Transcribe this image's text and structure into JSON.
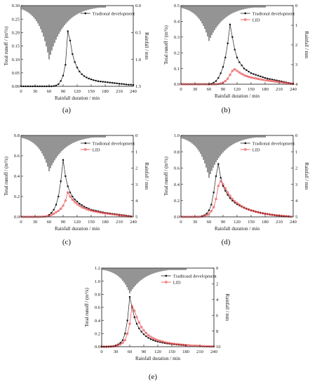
{
  "figure": {
    "caption_labels": [
      "(a)",
      "(b)",
      "(c)",
      "(d)",
      "(e)"
    ]
  },
  "chart_data": [
    {
      "panel": "(a)",
      "type": "line",
      "xlabel": "Rainfall duration / min",
      "ylabel": "Total runoff / (m³/s)",
      "y2label": "Rainfall / mm",
      "xlim": [
        0,
        240
      ],
      "xticks": [
        0,
        30,
        60,
        90,
        120,
        150,
        180,
        210,
        240
      ],
      "ylim": [
        0,
        0.3
      ],
      "yticks": [
        0.0,
        0.05,
        0.1,
        0.15,
        0.2,
        0.25,
        0.3
      ],
      "ytick_format": "0.00",
      "y2lim": [
        0,
        1.5
      ],
      "y2ticks": [
        0.0,
        0.5,
        1.0,
        1.5
      ],
      "y2tick_format": "0.0",
      "rain_peak": 1.0,
      "rain_peak_time": 60,
      "series": [
        {
          "name": "Tradional development",
          "color": "#000000",
          "marker": "square",
          "x": [
            0,
            5,
            10,
            15,
            20,
            25,
            30,
            35,
            40,
            45,
            50,
            55,
            60,
            65,
            70,
            75,
            80,
            85,
            90,
            95,
            100,
            105,
            110,
            115,
            120,
            125,
            130,
            135,
            140,
            145,
            150,
            155,
            160,
            165,
            170,
            175,
            180,
            185,
            190,
            195,
            200,
            205,
            210,
            215,
            220,
            225,
            230,
            235,
            240
          ],
          "y": [
            0,
            0,
            0,
            0,
            0,
            0,
            0,
            0,
            0,
            0,
            0,
            0,
            0,
            0,
            0.001,
            0.003,
            0.008,
            0.02,
            0.04,
            0.08,
            0.205,
            0.17,
            0.12,
            0.09,
            0.07,
            0.055,
            0.045,
            0.038,
            0.033,
            0.029,
            0.026,
            0.023,
            0.021,
            0.019,
            0.018,
            0.017,
            0.016,
            0.015,
            0.014,
            0.013,
            0.012,
            0.011,
            0.01,
            0.009,
            0.008,
            0.007,
            0.006,
            0.006,
            0.005
          ]
        }
      ]
    },
    {
      "panel": "(b)",
      "type": "line",
      "xlabel": "Rainfall duration / min",
      "ylabel": "Total runoff / (m³/s)",
      "y2label": "Rainfall / mm",
      "xlim": [
        0,
        240
      ],
      "xticks": [
        0,
        30,
        60,
        90,
        120,
        150,
        180,
        210,
        240
      ],
      "ylim": [
        0,
        0.5
      ],
      "yticks": [
        0.0,
        0.1,
        0.2,
        0.3,
        0.4,
        0.5
      ],
      "ytick_format": "0.0",
      "y2lim": [
        0,
        4
      ],
      "y2ticks": [
        0,
        1,
        2,
        3,
        4
      ],
      "y2tick_format": "0",
      "rain_peak": 1.8,
      "rain_peak_time": 60,
      "series": [
        {
          "name": "Tradional development",
          "color": "#000000",
          "marker": "square",
          "x": [
            60,
            65,
            70,
            75,
            80,
            85,
            90,
            95,
            100,
            105,
            110,
            115,
            120,
            125,
            130,
            135,
            140,
            145,
            150,
            155,
            160,
            165,
            170,
            175,
            180,
            185,
            190,
            195,
            200,
            205,
            210,
            215,
            220,
            225,
            230,
            235,
            240
          ],
          "y": [
            0,
            0.003,
            0.01,
            0.02,
            0.04,
            0.07,
            0.11,
            0.17,
            0.26,
            0.38,
            0.3,
            0.22,
            0.17,
            0.14,
            0.12,
            0.1,
            0.09,
            0.08,
            0.07,
            0.065,
            0.06,
            0.055,
            0.05,
            0.045,
            0.04,
            0.036,
            0.033,
            0.03,
            0.027,
            0.024,
            0.021,
            0.018,
            0.015,
            0.012,
            0.009,
            0.006,
            0.003
          ]
        },
        {
          "name": "LID",
          "color": "#e8464a",
          "marker": "circle",
          "x": [
            0,
            5,
            10,
            15,
            20,
            25,
            30,
            35,
            40,
            45,
            50,
            55,
            60,
            65,
            70,
            75,
            80,
            85,
            90,
            95,
            100,
            105,
            110,
            115,
            120,
            125,
            130,
            135,
            140,
            145,
            150,
            155,
            160,
            165,
            170,
            175,
            180,
            185,
            190,
            195,
            200,
            205,
            210,
            215,
            220,
            225,
            230,
            235,
            240
          ],
          "y": [
            0,
            0,
            0,
            0,
            0,
            0,
            0,
            0,
            0,
            0,
            0,
            0,
            0,
            0,
            0,
            0,
            0.002,
            0.005,
            0.01,
            0.02,
            0.035,
            0.06,
            0.085,
            0.095,
            0.085,
            0.075,
            0.066,
            0.058,
            0.052,
            0.047,
            0.043,
            0.04,
            0.037,
            0.034,
            0.031,
            0.028,
            0.026,
            0.024,
            0.022,
            0.02,
            0.018,
            0.016,
            0.014,
            0.012,
            0.01,
            0.008,
            0.006,
            0.004,
            0.002
          ]
        }
      ]
    },
    {
      "panel": "(c)",
      "type": "line",
      "xlabel": "Rainfall duration / min",
      "ylabel": "Total runoff / (m³/s)",
      "y2label": "Rainfall / mm",
      "xlim": [
        0,
        240
      ],
      "xticks": [
        0,
        30,
        60,
        90,
        120,
        150,
        180,
        210,
        240
      ],
      "ylim": [
        0,
        0.8
      ],
      "yticks": [
        0.0,
        0.2,
        0.4,
        0.6,
        0.8
      ],
      "ytick_format": "0.0",
      "y2lim": [
        0,
        5
      ],
      "y2ticks": [
        0,
        1,
        2,
        3,
        4,
        5
      ],
      "y2tick_format": "0",
      "rain_peak": 2.2,
      "rain_peak_time": 60,
      "series": [
        {
          "name": "Tradional development",
          "color": "#000000",
          "marker": "square",
          "x": [
            60,
            65,
            70,
            75,
            80,
            85,
            90,
            95,
            100,
            105,
            110,
            115,
            120,
            125,
            130,
            135,
            140,
            145,
            150,
            155,
            160,
            165,
            170,
            175,
            180,
            185,
            190,
            195,
            200,
            205,
            210,
            215,
            220,
            225,
            230,
            235
          ],
          "y": [
            0.02,
            0.04,
            0.07,
            0.12,
            0.2,
            0.35,
            0.56,
            0.4,
            0.3,
            0.24,
            0.2,
            0.17,
            0.15,
            0.13,
            0.115,
            0.1,
            0.09,
            0.08,
            0.07,
            0.065,
            0.06,
            0.055,
            0.05,
            0.045,
            0.04,
            0.037,
            0.034,
            0.031,
            0.028,
            0.025,
            0.022,
            0.019,
            0.016,
            0.013,
            0.01,
            0.007
          ]
        },
        {
          "name": "LID",
          "color": "#e8464a",
          "marker": "circle",
          "x": [
            0,
            5,
            10,
            15,
            20,
            25,
            30,
            35,
            40,
            45,
            50,
            55,
            60,
            65,
            70,
            75,
            80,
            85,
            90,
            95,
            100,
            105,
            110,
            115,
            120,
            125,
            130,
            135,
            140,
            145,
            150,
            155,
            160,
            165,
            170,
            175,
            180,
            185,
            190,
            195,
            200,
            205,
            210,
            215,
            220,
            225,
            230,
            235
          ],
          "y": [
            0,
            0,
            0,
            0,
            0,
            0,
            0,
            0,
            0.001,
            0.002,
            0.004,
            0.007,
            0.012,
            0.02,
            0.03,
            0.045,
            0.06,
            0.08,
            0.11,
            0.16,
            0.24,
            0.2,
            0.17,
            0.145,
            0.125,
            0.11,
            0.095,
            0.085,
            0.075,
            0.068,
            0.062,
            0.056,
            0.051,
            0.046,
            0.042,
            0.038,
            0.035,
            0.032,
            0.029,
            0.026,
            0.023,
            0.02,
            0.017,
            0.014,
            0.011,
            0.008,
            0.006,
            0.004
          ]
        }
      ]
    },
    {
      "panel": "(d)",
      "type": "line",
      "xlabel": "Rainfall duration / min",
      "ylabel": "Total runoff / (m³/s)",
      "y2label": "Rainfall / mm",
      "xlim": [
        0,
        240
      ],
      "xticks": [
        0,
        30,
        60,
        90,
        120,
        150,
        180,
        210,
        240
      ],
      "ylim": [
        0,
        1.0
      ],
      "yticks": [
        0.0,
        0.2,
        0.4,
        0.6,
        0.8,
        1.0
      ],
      "ytick_format": "0.0",
      "y2lim": [
        0,
        5
      ],
      "y2ticks": [
        0,
        1,
        2,
        3,
        4,
        5
      ],
      "y2tick_format": "0",
      "rain_peak": 2.6,
      "rain_peak_time": 60,
      "series": [
        {
          "name": "Tradional development",
          "color": "#000000",
          "marker": "square",
          "x": [
            45,
            50,
            55,
            60,
            65,
            70,
            75,
            80,
            85,
            90,
            95,
            100,
            105,
            110,
            115,
            120,
            125,
            130,
            135,
            140,
            145,
            150,
            155,
            160,
            165,
            170,
            175,
            180,
            185,
            190,
            195,
            200,
            205,
            210,
            215,
            220,
            225,
            230
          ],
          "y": [
            0.01,
            0.02,
            0.04,
            0.08,
            0.15,
            0.3,
            0.5,
            0.65,
            0.48,
            0.38,
            0.32,
            0.27,
            0.23,
            0.2,
            0.175,
            0.155,
            0.14,
            0.125,
            0.11,
            0.1,
            0.09,
            0.08,
            0.072,
            0.064,
            0.057,
            0.05,
            0.044,
            0.038,
            0.033,
            0.028,
            0.024,
            0.02,
            0.016,
            0.013,
            0.01,
            0.008,
            0.006,
            0.004
          ]
        },
        {
          "name": "LID",
          "color": "#e8464a",
          "marker": "circle",
          "x": [
            0,
            5,
            10,
            15,
            20,
            25,
            30,
            35,
            40,
            45,
            50,
            55,
            60,
            65,
            70,
            75,
            80,
            85,
            90,
            95,
            100,
            105,
            110,
            115,
            120,
            125,
            130,
            135,
            140,
            145,
            150,
            155,
            160,
            165,
            170,
            175,
            180,
            185,
            190,
            195,
            200,
            205,
            210,
            215,
            220,
            225,
            230,
            235
          ],
          "y": [
            0,
            0,
            0,
            0,
            0,
            0,
            0,
            0,
            0.002,
            0.005,
            0.01,
            0.02,
            0.04,
            0.07,
            0.12,
            0.22,
            0.38,
            0.44,
            0.4,
            0.35,
            0.3,
            0.26,
            0.22,
            0.19,
            0.17,
            0.15,
            0.13,
            0.115,
            0.1,
            0.09,
            0.08,
            0.072,
            0.064,
            0.057,
            0.05,
            0.044,
            0.039,
            0.034,
            0.03,
            0.026,
            0.022,
            0.019,
            0.016,
            0.013,
            0.01,
            0.008,
            0.006,
            0.004
          ]
        }
      ]
    },
    {
      "panel": "(e)",
      "type": "line",
      "xlabel": "Rainfall duration / min",
      "ylabel": "Total runoff / (m³/s)",
      "y2label": "Rainfall / mm",
      "xlim": [
        0,
        240
      ],
      "xticks": [
        0,
        30,
        60,
        90,
        120,
        150,
        180,
        210,
        240
      ],
      "ylim": [
        0,
        1.2
      ],
      "yticks": [
        0.0,
        0.2,
        0.4,
        0.6,
        0.8,
        1.0,
        1.2
      ],
      "ytick_format": "0.0",
      "y2lim": [
        0,
        10
      ],
      "y2ticks": [
        0,
        2,
        4,
        6,
        8,
        10
      ],
      "y2tick_format": "0",
      "rain_peak": 3.2,
      "rain_peak_time": 60,
      "series": [
        {
          "name": "Tradtioanl development",
          "color": "#000000",
          "marker": "square",
          "x": [
            0,
            5,
            10,
            15,
            20,
            25,
            30,
            35,
            40,
            45,
            50,
            55,
            60,
            65,
            70,
            75,
            80,
            85,
            90,
            95,
            100,
            105,
            110,
            115,
            120,
            125,
            130,
            135,
            140,
            145,
            150,
            155,
            160,
            165,
            170,
            175,
            180
          ],
          "y": [
            0,
            0,
            0,
            0.002,
            0.005,
            0.01,
            0.02,
            0.035,
            0.06,
            0.1,
            0.2,
            0.4,
            0.76,
            0.6,
            0.45,
            0.35,
            0.28,
            0.23,
            0.19,
            0.16,
            0.135,
            0.115,
            0.1,
            0.088,
            0.078,
            0.07,
            0.062,
            0.055,
            0.049,
            0.044,
            0.04,
            0.036,
            0.032,
            0.029,
            0.026,
            0.023,
            0.02
          ]
        },
        {
          "name": "LID",
          "color": "#e8464a",
          "marker": "circle",
          "x": [
            0,
            5,
            10,
            15,
            20,
            25,
            30,
            35,
            40,
            45,
            50,
            55,
            60,
            65,
            70,
            75,
            80,
            85,
            90,
            95,
            100,
            105,
            110,
            115,
            120,
            125,
            130,
            135,
            140,
            145,
            150,
            155,
            160,
            165,
            170,
            175,
            180,
            185,
            190,
            195,
            200,
            205,
            210,
            215,
            220,
            225,
            230,
            235,
            240
          ],
          "y": [
            0,
            0,
            0,
            0.001,
            0.003,
            0.006,
            0.012,
            0.02,
            0.035,
            0.06,
            0.1,
            0.2,
            0.35,
            0.62,
            0.55,
            0.45,
            0.37,
            0.3,
            0.25,
            0.21,
            0.175,
            0.15,
            0.13,
            0.113,
            0.1,
            0.088,
            0.078,
            0.069,
            0.061,
            0.054,
            0.048,
            0.043,
            0.039,
            0.035,
            0.031,
            0.028,
            0.025,
            0.022,
            0.019,
            0.017,
            0.015,
            0.013,
            0.011,
            0.009,
            0.008,
            0.006,
            0.005,
            0.004,
            0.003
          ]
        }
      ]
    }
  ]
}
